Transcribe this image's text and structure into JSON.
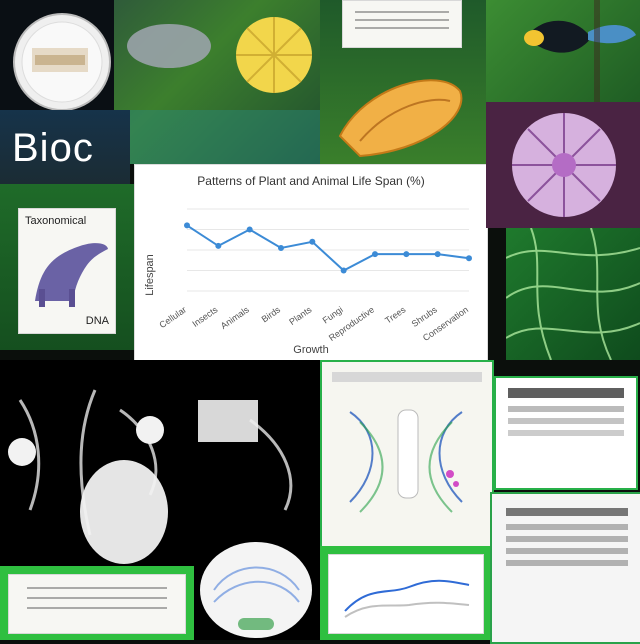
{
  "title_text": "Bioc",
  "card_title": "Taxonomical",
  "card_caption": "DNA",
  "chart_axis_label": "Growth",
  "chart_data": {
    "type": "line",
    "title": "Patterns of Plant and Animal Life Span (%)",
    "xlabel": "Growth",
    "ylabel": "Lifespan",
    "categories": [
      "Cellular",
      "Insects",
      "Animals",
      "Birds",
      "Plants",
      "Fungi",
      "Reproductive",
      "Trees",
      "Shrubs",
      "Conservation"
    ],
    "series": [
      {
        "values": [
          72,
          62,
          70,
          61,
          64,
          50,
          58,
          58,
          58,
          56
        ]
      }
    ],
    "grid": true,
    "legend": "none",
    "color": "#3c8bd6"
  },
  "colors": {
    "accent": "#2f8fe0",
    "green": "#2aa24a",
    "dark": "#0b0f0c",
    "paper": "#f7f7f3",
    "purple": "#7a3c8c"
  },
  "icons": {
    "title_icon": "bioc-wordmark",
    "cell_icon": "petri-dish-icon",
    "plant_icon": "plant-icon",
    "fruit_icon": "fruit-icon",
    "bird_icon": "bird-icon",
    "radial_icon": "radial-cell-icon",
    "leaf_icon": "leaf-icon",
    "animal_icon": "animal-icon",
    "neuron_icon": "neuron-icon",
    "cross_section_icon": "cross-section-icon",
    "doc_icon": "document-icon"
  }
}
